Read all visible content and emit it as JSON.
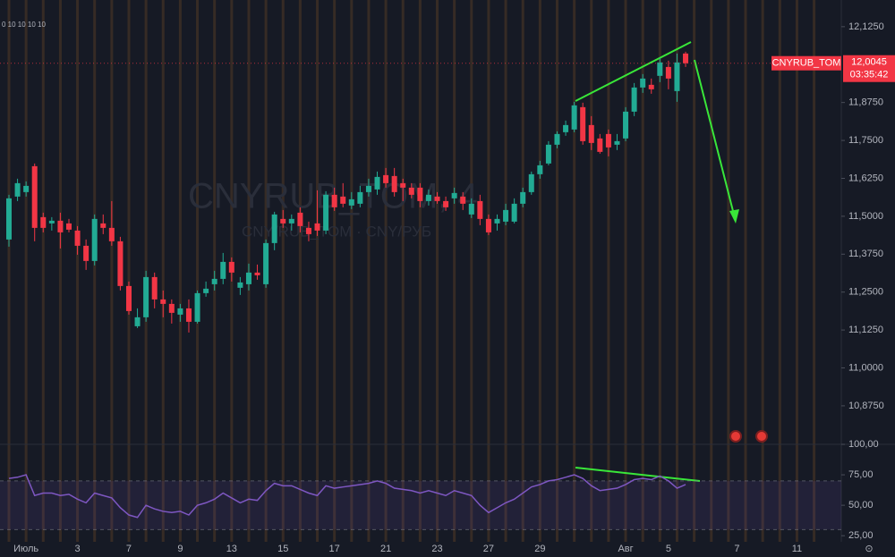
{
  "chart_data": [
    {
      "type": "candlestick",
      "watermark": "CNYRUB_TOM, 4",
      "subtitle": "CNY/RUB_TOM · CNY/РУБ",
      "annotation": "0 10 10 10 10",
      "up_color": "#22ab94",
      "down_color": "#f23645",
      "categories": [
        null,
        null,
        "Июль",
        null,
        null,
        null,
        null,
        null,
        "3",
        null,
        null,
        null,
        null,
        null,
        "7",
        null,
        null,
        null,
        null,
        null,
        "9",
        null,
        null,
        null,
        null,
        null,
        "13",
        null,
        null,
        null,
        null,
        null,
        "15",
        null,
        null,
        null,
        null,
        null,
        "17",
        null,
        null,
        null,
        null,
        null,
        "21",
        null,
        null,
        null,
        null,
        null,
        "23",
        null,
        null,
        null,
        null,
        null,
        "27",
        null,
        null,
        null,
        null,
        null,
        "29",
        null,
        null,
        null,
        null,
        null,
        null,
        null,
        null,
        null,
        "Авг",
        null,
        null,
        null,
        null,
        "5",
        null,
        null,
        null,
        null,
        null,
        null,
        null,
        "7",
        null,
        null,
        null,
        null,
        null,
        null,
        "11",
        null,
        null
      ],
      "open": [
        11.4234,
        11.5649,
        11.5796,
        11.6651,
        11.4971,
        11.4764,
        11.4853,
        11.4764,
        11.4528,
        11.4027,
        11.3526,
        11.4764,
        11.4617,
        11.4175,
        11.2701,
        11.1374,
        11.1669,
        11.2995,
        11.2258,
        11.2111,
        11.1757,
        11.1963,
        11.1521,
        11.2465,
        11.2759,
        11.2936,
        11.3496,
        11.2642,
        11.2759,
        11.3143,
        11.2759,
        11.4116,
        11.4912,
        11.4764,
        11.5118,
        11.4617,
        11.4764,
        11.4528,
        11.5708,
        11.5649,
        11.5354,
        11.5413,
        11.5796,
        11.5884,
        11.6356,
        11.6327,
        11.6091,
        11.5943,
        11.5943,
        11.5501,
        11.5649,
        11.5501,
        11.559,
        11.5649,
        11.5059,
        11.5501,
        11.4912,
        11.4764,
        11.4823,
        11.4823,
        11.5413,
        11.5796,
        11.6386,
        11.6739,
        11.7359,
        11.7771,
        11.786,
        11.8597,
        11.8007,
        11.7565,
        11.7712,
        11.7359,
        11.7565,
        11.8449,
        11.9245,
        11.9334,
        11.9629,
        11.9923,
        11.9127,
        12.0366,
        null,
        null,
        null,
        null,
        null,
        null,
        null,
        null,
        null,
        null,
        null,
        null,
        null,
        null,
        null
      ],
      "high": [
        11.5708,
        11.6238,
        11.615,
        11.6739,
        11.5118,
        11.4971,
        11.5118,
        11.4912,
        11.4676,
        11.4234,
        11.5059,
        11.5059,
        11.5501,
        11.4322,
        11.2848,
        11.1963,
        11.3202,
        11.3143,
        11.2553,
        11.2258,
        11.2111,
        11.2258,
        11.2553,
        11.2848,
        11.3202,
        11.3791,
        11.3644,
        11.2995,
        11.3438,
        11.3408,
        11.4234,
        11.5147,
        11.5206,
        11.5059,
        11.5295,
        11.4823,
        11.5855,
        11.5825,
        11.5943,
        11.6091,
        11.5796,
        11.6002,
        11.6238,
        11.6474,
        11.6592,
        11.6592,
        11.6238,
        11.6091,
        11.6091,
        11.5884,
        11.5796,
        11.5649,
        11.5943,
        11.5796,
        11.559,
        11.5708,
        11.5059,
        11.5059,
        11.5413,
        11.559,
        11.5943,
        11.6474,
        11.6828,
        11.7476,
        11.7801,
        11.8154,
        11.8774,
        11.8744,
        11.8302,
        11.7712,
        11.786,
        11.7712,
        11.8597,
        11.9393,
        11.9688,
        11.954,
        12.0218,
        12.013,
        12.0366,
        12.0425,
        null,
        null,
        null,
        null,
        null,
        null,
        null,
        null,
        null,
        null,
        null,
        null,
        null,
        null,
        null
      ],
      "low": [
        11.3998,
        11.5501,
        11.5649,
        11.4175,
        11.4469,
        11.4528,
        11.3939,
        11.4469,
        11.3732,
        11.3231,
        11.3379,
        11.441,
        11.4027,
        11.2553,
        11.1757,
        11.1315,
        11.1521,
        11.1963,
        11.1669,
        11.1462,
        11.1521,
        11.1167,
        11.1462,
        11.2347,
        11.2553,
        11.2759,
        11.2848,
        11.2406,
        11.2553,
        11.2907,
        11.2642,
        11.388,
        11.4617,
        11.4528,
        11.4469,
        11.4175,
        11.4351,
        11.441,
        11.5177,
        11.5295,
        11.5236,
        11.5295,
        11.5649,
        11.5708,
        11.5943,
        11.5649,
        11.5501,
        11.559,
        11.5295,
        11.5354,
        11.5413,
        11.5177,
        11.5413,
        11.5206,
        11.4941,
        11.4705,
        11.4381,
        11.4528,
        11.4705,
        11.4764,
        11.5295,
        11.5708,
        11.6238,
        11.668,
        11.7241,
        11.7653,
        11.7771,
        11.7359,
        11.7182,
        11.7064,
        11.6975,
        11.7182,
        11.7476,
        11.8302,
        11.9068,
        11.9039,
        11.9422,
        11.9186,
        11.8774,
        11.9923,
        null,
        null,
        null,
        null,
        null,
        null,
        null,
        null,
        null,
        null,
        null,
        null,
        null,
        null,
        null
      ],
      "close": [
        11.559,
        11.6091,
        11.6002,
        11.4617,
        11.4617,
        11.4853,
        11.4469,
        11.4558,
        11.4027,
        11.3526,
        11.4912,
        11.4617,
        11.4175,
        11.2701,
        11.1875,
        11.1669,
        11.2995,
        11.2258,
        11.2111,
        11.1816,
        11.1963,
        11.1521,
        11.2465,
        11.2612,
        11.2936,
        11.3496,
        11.3143,
        11.2818,
        11.3143,
        11.3054,
        11.4116,
        11.5059,
        11.4764,
        11.4912,
        11.4676,
        11.441,
        11.4528,
        11.5708,
        11.5295,
        11.5413,
        11.556,
        11.5796,
        11.6002,
        11.6297,
        11.6091,
        11.5796,
        11.5943,
        11.5708,
        11.5501,
        11.5708,
        11.5501,
        11.5295,
        11.5767,
        11.5413,
        11.5413,
        11.4912,
        11.4469,
        11.4912,
        11.5206,
        11.5413,
        11.5796,
        11.6386,
        11.668,
        11.7359,
        11.7712,
        11.8007,
        11.8656,
        11.7476,
        11.7417,
        11.7123,
        11.727,
        11.7476,
        11.8449,
        11.9245,
        11.954,
        11.9186,
        12.0071,
        11.954,
        12.0071,
        12.0045,
        null,
        null,
        null,
        null,
        null,
        null,
        null,
        null,
        null,
        null,
        null,
        null,
        null,
        null,
        null
      ],
      "ylim": [
        10.748,
        12.213
      ],
      "yticks": [
        {
          "value": 12.125,
          "label": "12,1250"
        },
        {
          "value": 11.875,
          "label": "11,8750"
        },
        {
          "value": 11.75,
          "label": "11,7500"
        },
        {
          "value": 11.625,
          "label": "11,6250"
        },
        {
          "value": 11.5,
          "label": "11,5000"
        },
        {
          "value": 11.375,
          "label": "11,3750"
        },
        {
          "value": 11.25,
          "label": "11,2500"
        },
        {
          "value": 11.125,
          "label": "11,1250"
        },
        {
          "value": 11,
          "label": "11,0000"
        },
        {
          "value": 10.875,
          "label": "10,8750"
        }
      ],
      "last_label": {
        "symbol": "CNYRUB_TOM",
        "price": "12,0045",
        "timer": "03:35:42"
      }
    },
    {
      "type": "line",
      "color": "#7e57c2",
      "band": [
        30,
        70
      ],
      "values": [
        72,
        73,
        75,
        58,
        60,
        60,
        58,
        59,
        55,
        52,
        60,
        58,
        56,
        48,
        42,
        40,
        50,
        47,
        45,
        44,
        45,
        42,
        50,
        52,
        55,
        60,
        56,
        52,
        55,
        54,
        62,
        68,
        66,
        66,
        63,
        60,
        58,
        66,
        64,
        65,
        66,
        67,
        68,
        70,
        68,
        64,
        63,
        62,
        60,
        62,
        60,
        58,
        62,
        60,
        58,
        50,
        44,
        48,
        52,
        55,
        60,
        65,
        67,
        70,
        71,
        73,
        75,
        72,
        66,
        62,
        63,
        64,
        67,
        71,
        72,
        71,
        74,
        70,
        64,
        67,
        null,
        null,
        null,
        null,
        null,
        null,
        null,
        null,
        null,
        null,
        null,
        null,
        null,
        null,
        null
      ],
      "ylim": [
        20,
        100
      ],
      "yticks": [
        {
          "value": 100,
          "label": "100,00"
        },
        {
          "value": 75,
          "label": "75,00"
        },
        {
          "value": 50,
          "label": "50,00"
        },
        {
          "value": 25,
          "label": "25,00"
        }
      ]
    }
  ]
}
